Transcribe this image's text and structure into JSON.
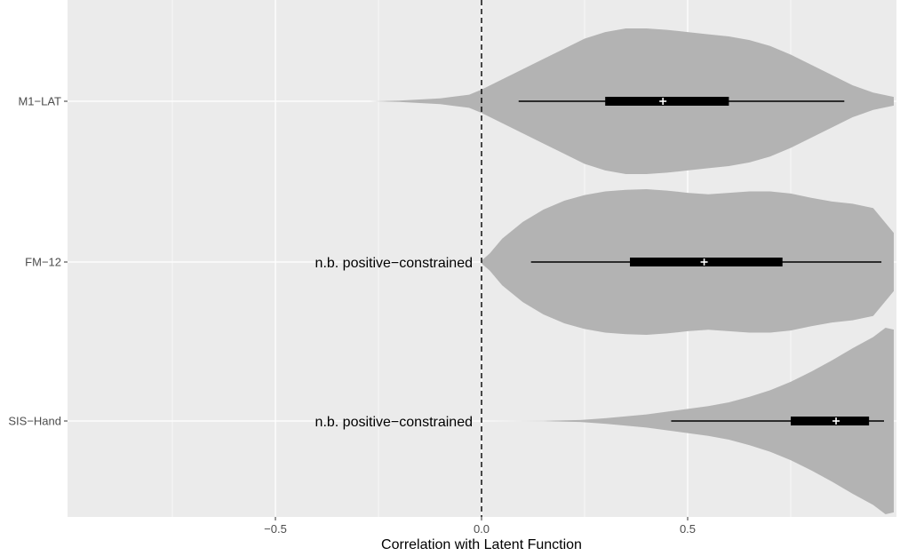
{
  "chart_data": {
    "type": "violin",
    "xlabel": "Correlation with Latent Function",
    "ylabel": "",
    "xlim": [
      -1.0,
      1.0
    ],
    "x_ticks": [
      -0.5,
      0.0,
      0.5
    ],
    "x_tick_labels": [
      "−0.5",
      "0.0",
      "0.5"
    ],
    "grid": true,
    "reference_line": {
      "x": 0.0,
      "style": "dashed"
    },
    "categories": [
      "M1−LAT",
      "FM−12",
      "SIS−Hand"
    ],
    "series": [
      {
        "category": "M1−LAT",
        "q1": 0.3,
        "median": 0.44,
        "q3": 0.6,
        "whisker_low": 0.09,
        "whisker_high": 0.88,
        "density_x": [
          -0.27,
          -0.2,
          -0.1,
          -0.03,
          0.0,
          0.05,
          0.1,
          0.15,
          0.2,
          0.25,
          0.3,
          0.35,
          0.4,
          0.45,
          0.5,
          0.55,
          0.6,
          0.65,
          0.7,
          0.75,
          0.8,
          0.85,
          0.9,
          0.95,
          1.0
        ],
        "density": [
          0.0,
          0.01,
          0.04,
          0.09,
          0.16,
          0.3,
          0.44,
          0.58,
          0.72,
          0.86,
          0.95,
          1.0,
          1.0,
          0.98,
          0.95,
          0.92,
          0.89,
          0.84,
          0.76,
          0.64,
          0.5,
          0.36,
          0.22,
          0.12,
          0.06
        ],
        "annotation": ""
      },
      {
        "category": "FM−12",
        "q1": 0.36,
        "median": 0.54,
        "q3": 0.73,
        "whisker_low": 0.12,
        "whisker_high": 0.97,
        "density_x": [
          0.0,
          0.02,
          0.05,
          0.1,
          0.15,
          0.2,
          0.25,
          0.3,
          0.35,
          0.4,
          0.45,
          0.5,
          0.55,
          0.6,
          0.65,
          0.7,
          0.75,
          0.8,
          0.85,
          0.9,
          0.95,
          1.0
        ],
        "density": [
          0.02,
          0.12,
          0.32,
          0.55,
          0.72,
          0.84,
          0.92,
          0.97,
          0.99,
          1.0,
          0.98,
          0.95,
          0.93,
          0.95,
          0.97,
          0.97,
          0.94,
          0.88,
          0.83,
          0.8,
          0.74,
          0.4
        ],
        "annotation": "n.b. positive−constrained"
      },
      {
        "category": "SIS−Hand",
        "q1": 0.75,
        "median": 0.86,
        "q3": 0.94,
        "whisker_low": 0.46,
        "whisker_high": 1.0,
        "density_x": [
          0.0,
          0.15,
          0.24,
          0.3,
          0.35,
          0.4,
          0.45,
          0.5,
          0.55,
          0.6,
          0.65,
          0.7,
          0.75,
          0.8,
          0.85,
          0.9,
          0.95,
          0.98,
          1.0
        ],
        "density": [
          0.0,
          0.002,
          0.01,
          0.03,
          0.05,
          0.07,
          0.1,
          0.13,
          0.16,
          0.2,
          0.26,
          0.33,
          0.42,
          0.53,
          0.65,
          0.78,
          0.9,
          1.0,
          0.98
        ],
        "annotation": "n.b. positive−constrained"
      }
    ]
  }
}
